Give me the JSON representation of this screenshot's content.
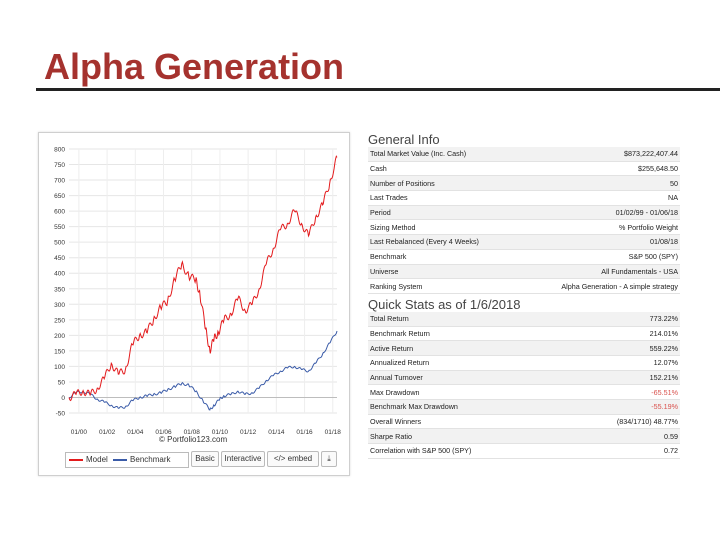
{
  "slide": {
    "title": "Alpha Generation"
  },
  "colors": {
    "title": "#a5322e",
    "model": "#e31a1c",
    "benchmark": "#3a5ba8",
    "negative": "#d9534f"
  },
  "chart_data": {
    "type": "line",
    "ylim": [
      -50,
      800
    ],
    "yticks": [
      800,
      750,
      700,
      650,
      600,
      550,
      500,
      450,
      400,
      350,
      300,
      250,
      200,
      150,
      100,
      50,
      0,
      -50
    ],
    "xticks": [
      "01/00",
      "01/02",
      "01/04",
      "01/06",
      "01/08",
      "01/10",
      "01/12",
      "01/14",
      "01/16",
      "01/18"
    ],
    "xrange": [
      1999.0,
      2018.02
    ],
    "grid": true,
    "series": [
      {
        "name": "Model",
        "color": "#e31a1c",
        "x": [
          1999.0,
          1999.5,
          2000.0,
          2000.5,
          2001.0,
          2001.5,
          2002.0,
          2002.5,
          2003.0,
          2003.5,
          2004.0,
          2004.5,
          2005.0,
          2005.5,
          2006.0,
          2006.5,
          2007.0,
          2007.5,
          2008.0,
          2008.3,
          2008.7,
          2009.0,
          2009.3,
          2009.6,
          2010.0,
          2010.5,
          2011.0,
          2011.5,
          2012.0,
          2012.5,
          2013.0,
          2013.5,
          2014.0,
          2014.5,
          2015.0,
          2015.5,
          2016.0,
          2016.5,
          2017.0,
          2017.5,
          2018.02
        ],
        "y": [
          0,
          10,
          22,
          8,
          30,
          60,
          110,
          75,
          90,
          170,
          200,
          210,
          250,
          290,
          310,
          380,
          430,
          390,
          380,
          330,
          220,
          150,
          190,
          210,
          250,
          270,
          320,
          280,
          300,
          350,
          430,
          480,
          540,
          560,
          600,
          560,
          520,
          580,
          620,
          690,
          773
        ]
      },
      {
        "name": "Benchmark",
        "color": "#3a5ba8",
        "x": [
          1999.0,
          1999.5,
          2000.0,
          2000.5,
          2001.0,
          2001.5,
          2002.0,
          2002.5,
          2003.0,
          2003.5,
          2004.0,
          2004.5,
          2005.0,
          2005.5,
          2006.0,
          2006.5,
          2007.0,
          2007.5,
          2008.0,
          2008.5,
          2009.0,
          2009.3,
          2009.7,
          2010.0,
          2010.5,
          2011.0,
          2011.5,
          2012.0,
          2012.5,
          2013.0,
          2013.5,
          2014.0,
          2014.5,
          2015.0,
          2015.5,
          2016.0,
          2016.5,
          2017.0,
          2017.5,
          2018.02
        ],
        "y": [
          0,
          15,
          20,
          10,
          -5,
          -15,
          -25,
          -35,
          -30,
          -10,
          0,
          5,
          10,
          15,
          25,
          35,
          45,
          40,
          20,
          -10,
          -40,
          -25,
          -5,
          5,
          10,
          20,
          10,
          15,
          30,
          55,
          70,
          85,
          95,
          100,
          90,
          85,
          110,
          140,
          175,
          214
        ]
      }
    ]
  },
  "chart_footer": {
    "legend_model": "Model",
    "legend_benchmark": "Benchmark",
    "watermark": "© Portfolio123.com",
    "btn_basic": "Basic",
    "btn_interactive": "Interactive",
    "btn_embed": "</> embed",
    "btn_download": "⤓"
  },
  "general_info": {
    "heading": "General Info",
    "rows": [
      [
        "Total Market Value (Inc. Cash)",
        "$873,222,407.44"
      ],
      [
        "Cash",
        "$255,648.50"
      ],
      [
        "Number of Positions",
        "50"
      ],
      [
        "Last Trades",
        "NA"
      ],
      [
        "Period",
        "01/02/99 - 01/06/18"
      ],
      [
        "Sizing Method",
        "% Portfolio Weight"
      ],
      [
        "Last Rebalanced (Every 4 Weeks)",
        "01/08/18"
      ],
      [
        "Benchmark",
        "S&P 500 (SPY)"
      ],
      [
        "Universe",
        "All Fundamentals - USA"
      ],
      [
        "Ranking System",
        "Alpha Generation - A simple strategy"
      ]
    ]
  },
  "quick_stats": {
    "heading": "Quick Stats as of 1/6/2018",
    "rows": [
      [
        "Total Return",
        "773.22%"
      ],
      [
        "Benchmark Return",
        "214.01%"
      ],
      [
        "Active Return",
        "559.22%"
      ],
      [
        "Annualized Return",
        "12.07%"
      ],
      [
        "Annual Turnover",
        "152.21%"
      ],
      [
        "Max Drawdown",
        "-65.51%"
      ],
      [
        "Benchmark Max Drawdown",
        "-55.19%"
      ],
      [
        "Overall Winners",
        "(834/1710) 48.77%"
      ],
      [
        "Sharpe Ratio",
        "0.59"
      ],
      [
        "Correlation with S&P 500 (SPY)",
        "0.72"
      ]
    ]
  }
}
